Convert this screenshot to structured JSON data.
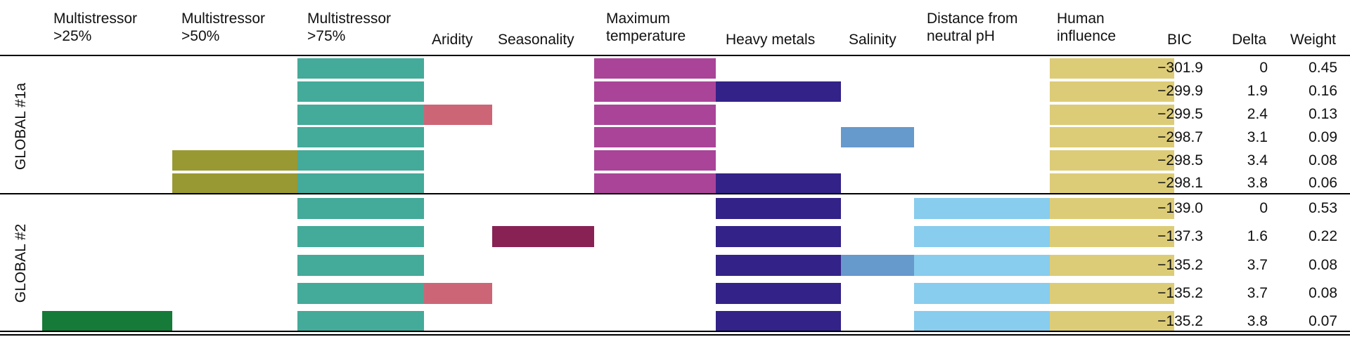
{
  "chart_data": {
    "type": "table",
    "columns": [
      {
        "label": "Multistressor\n>25%",
        "color": "#167a38"
      },
      {
        "label": "Multistressor\n>50%",
        "color": "#999933"
      },
      {
        "label": "Multistressor\n>75%",
        "color": "#44aa99"
      },
      {
        "label": "Aridity",
        "color": "#cc6677"
      },
      {
        "label": "Seasonality",
        "color": "#882255"
      },
      {
        "label": "Maximum\ntemperature",
        "color": "#aa4499"
      },
      {
        "label": "Heavy metals",
        "color": "#332288"
      },
      {
        "label": "Salinity",
        "color": "#6699cc"
      },
      {
        "label": "Distance from\nneutral pH",
        "color": "#88ccee"
      },
      {
        "label": "Human\ninfluence",
        "color": "#ddcc77"
      }
    ],
    "stat_headers": [
      "BIC",
      "Delta",
      "Weight"
    ],
    "groups": [
      {
        "name": "GLOBAL #1a",
        "models": [
          {
            "included": [
              2,
              5,
              9
            ],
            "bic": "−301.9",
            "delta": "0",
            "weight": "0.45"
          },
          {
            "included": [
              2,
              5,
              6,
              9
            ],
            "bic": "−299.9",
            "delta": "1.9",
            "weight": "0.16"
          },
          {
            "included": [
              2,
              3,
              5,
              9
            ],
            "bic": "−299.5",
            "delta": "2.4",
            "weight": "0.13"
          },
          {
            "included": [
              2,
              5,
              7,
              9
            ],
            "bic": "−298.7",
            "delta": "3.1",
            "weight": "0.09"
          },
          {
            "included": [
              1,
              2,
              5,
              9
            ],
            "bic": "−298.5",
            "delta": "3.4",
            "weight": "0.08"
          },
          {
            "included": [
              1,
              2,
              5,
              6,
              9
            ],
            "bic": "−298.1",
            "delta": "3.8",
            "weight": "0.06"
          }
        ]
      },
      {
        "name": "GLOBAL #2",
        "models": [
          {
            "included": [
              2,
              6,
              8,
              9
            ],
            "bic": "−139.0",
            "delta": "0",
            "weight": "0.53"
          },
          {
            "included": [
              2,
              4,
              6,
              8,
              9
            ],
            "bic": "−137.3",
            "delta": "1.6",
            "weight": "0.22"
          },
          {
            "included": [
              2,
              6,
              7,
              8,
              9
            ],
            "bic": "−135.2",
            "delta": "3.7",
            "weight": "0.08"
          },
          {
            "included": [
              2,
              3,
              6,
              8,
              9
            ],
            "bic": "−135.2",
            "delta": "3.7",
            "weight": "0.08"
          },
          {
            "included": [
              0,
              2,
              6,
              8,
              9
            ],
            "bic": "−135.2",
            "delta": "3.8",
            "weight": "0.07"
          }
        ]
      }
    ]
  }
}
